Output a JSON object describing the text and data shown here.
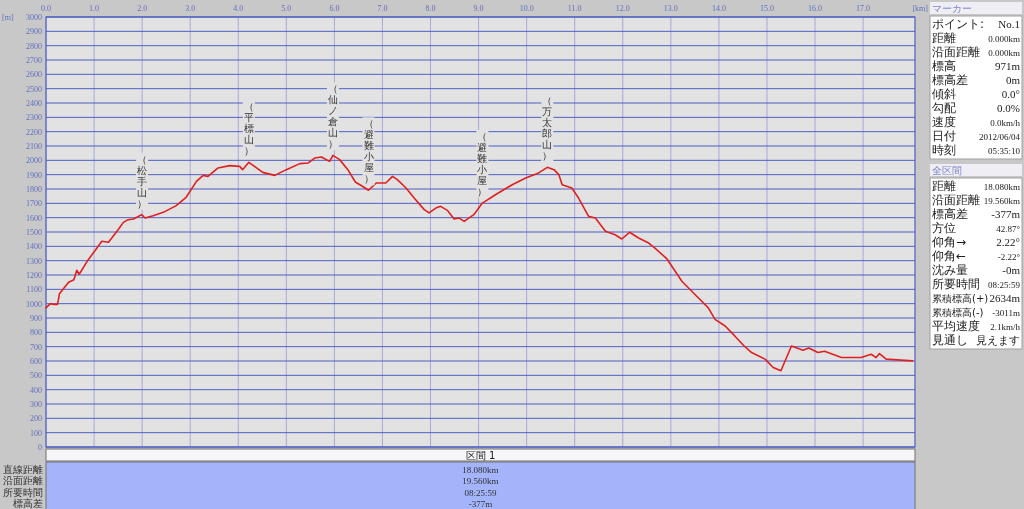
{
  "chart_data": [
    {
      "type": "line",
      "xlabel": "[km]",
      "ylabel": "[m]",
      "xlim": [
        0,
        18.08
      ],
      "ylim": [
        0,
        3000
      ],
      "xticks": [
        {
          "value": 0,
          "label": "0.0"
        },
        {
          "value": 1,
          "label": "1.0"
        },
        {
          "value": 2,
          "label": "2.0"
        },
        {
          "value": 3,
          "label": "3.0"
        },
        {
          "value": 4,
          "label": "4.0"
        },
        {
          "value": 5,
          "label": "5.0"
        },
        {
          "value": 6,
          "label": "6.0"
        },
        {
          "value": 7,
          "label": "7.0"
        },
        {
          "value": 8,
          "label": "8.0"
        },
        {
          "value": 9,
          "label": "9.0"
        },
        {
          "value": 10,
          "label": "10.0"
        },
        {
          "value": 11,
          "label": "11.0"
        },
        {
          "value": 12,
          "label": "12.0"
        },
        {
          "value": 13,
          "label": "13.0"
        },
        {
          "value": 14,
          "label": "14.0"
        },
        {
          "value": 15,
          "label": "15.0"
        },
        {
          "value": 16,
          "label": "16.0"
        },
        {
          "value": 17,
          "label": "17.0"
        }
      ],
      "yticks": [
        0,
        100,
        200,
        300,
        400,
        500,
        600,
        700,
        800,
        900,
        1000,
        1100,
        1200,
        1300,
        1400,
        1500,
        1600,
        1700,
        1800,
        1900,
        2000,
        2100,
        2200,
        2300,
        2400,
        2500,
        2600,
        2700,
        2800,
        2900,
        3000
      ],
      "grid": true,
      "marker": "none",
      "line_style": "solid",
      "series": [
        {
          "color": "#e02020",
          "x": [
            0,
            0.09,
            0.17,
            0.24,
            0.28,
            0.47,
            0.58,
            0.64,
            0.69,
            0.88,
            1.06,
            1.16,
            1.3,
            1.5,
            1.61,
            1.71,
            1.82,
            1.99,
            2.06,
            2.23,
            2.44,
            2.71,
            2.92,
            3.13,
            3.27,
            3.37,
            3.58,
            3.82,
            4.03,
            4.09,
            4.22,
            4.51,
            4.76,
            5.0,
            5.28,
            5.45,
            5.59,
            5.73,
            5.9,
            5.97,
            6.11,
            6.28,
            6.44,
            6.55,
            6.71,
            6.87,
            7.07,
            7.21,
            7.31,
            7.49,
            7.66,
            7.87,
            7.97,
            8.11,
            8.21,
            8.35,
            8.49,
            8.59,
            8.7,
            8.9,
            9.08,
            9.35,
            9.7,
            9.98,
            10.25,
            10.43,
            10.57,
            10.67,
            10.74,
            10.94,
            11.08,
            11.29,
            11.43,
            11.64,
            11.84,
            11.98,
            12.14,
            12.33,
            12.54,
            12.67,
            12.92,
            13.23,
            13.57,
            13.78,
            13.92,
            14.13,
            14.33,
            14.51,
            14.68,
            14.96,
            15.13,
            15.29,
            15.51,
            15.75,
            15.87,
            16.06,
            16.2,
            16.55,
            16.96,
            17.17,
            17.27,
            17.34,
            17.48,
            18.03
          ],
          "values": [
            971,
            1000,
            995,
            995,
            1070,
            1150,
            1167,
            1233,
            1205,
            1307,
            1388,
            1435,
            1428,
            1516,
            1567,
            1586,
            1591,
            1621,
            1598,
            1614,
            1637,
            1684,
            1744,
            1853,
            1895,
            1888,
            1947,
            1963,
            1958,
            1935,
            1986,
            1916,
            1895,
            1935,
            1977,
            1981,
            2016,
            2023,
            1993,
            2035,
            2005,
            1935,
            1847,
            1826,
            1791,
            1842,
            1842,
            1888,
            1865,
            1807,
            1737,
            1656,
            1633,
            1667,
            1679,
            1651,
            1591,
            1598,
            1574,
            1621,
            1702,
            1760,
            1830,
            1877,
            1912,
            1951,
            1935,
            1900,
            1830,
            1807,
            1737,
            1609,
            1598,
            1505,
            1481,
            1451,
            1498,
            1458,
            1423,
            1388,
            1312,
            1156,
            1041,
            971,
            890,
            844,
            775,
            710,
            659,
            613,
            555,
            532,
            705,
            675,
            691,
            659,
            668,
            624,
            624,
            647,
            624,
            652,
            613,
            601
          ]
        }
      ],
      "annotations": [
        {
          "text": "（松手山）",
          "x": 2.0,
          "y": 1621
        },
        {
          "text": "（平標山）",
          "x": 4.22,
          "y": 1986
        },
        {
          "text": "（仙ノ倉山）",
          "x": 5.97,
          "y": 2035
        },
        {
          "text": "（避難小屋）",
          "x": 6.71,
          "y": 1791
        },
        {
          "text": "（避難小屋）",
          "x": 9.08,
          "y": 1702
        },
        {
          "text": "（万太郎山）",
          "x": 10.43,
          "y": 1951
        }
      ]
    },
    {
      "type": "other",
      "title": "マーカー",
      "y_categories": [
        "ポイント:",
        "距離",
        "沿面距離",
        "標高",
        "標高差",
        "傾斜",
        "勾配",
        "速度",
        "日付",
        "時刻"
      ],
      "cell_labels": [
        [
          "No.1"
        ],
        [
          "0.000km"
        ],
        [
          "0.000km"
        ],
        [
          "971m"
        ],
        [
          "0m"
        ],
        [
          "0.0°"
        ],
        [
          "0.0%"
        ],
        [
          "0.0km/h"
        ],
        [
          "2012/06/04"
        ],
        [
          "05:35:10"
        ]
      ]
    },
    {
      "type": "other",
      "title": "全区間",
      "y_categories": [
        "距離",
        "沿面距離",
        "標高差",
        "方位",
        "仰角→",
        "仰角←",
        "沈み量",
        "所要時間",
        "累積標高(+)",
        "累積標高(-)",
        "平均速度",
        "見通し"
      ],
      "cell_labels": [
        [
          "18.080km"
        ],
        [
          "19.560km"
        ],
        [
          "-377m"
        ],
        [
          "42.87°"
        ],
        [
          "2.22°"
        ],
        [
          "-2.22°"
        ],
        [
          "-0m"
        ],
        [
          "08:25:59"
        ],
        [
          "2634m"
        ],
        [
          "-3011m"
        ],
        [
          "2.1km/h"
        ],
        [
          "見えます"
        ]
      ]
    },
    {
      "type": "other",
      "categories": [
        "区間 1"
      ],
      "y_categories": [
        "直線距離",
        "沿面距離",
        "所要時間",
        "標高差"
      ],
      "cell_labels": [
        [
          "18.080km"
        ],
        [
          "19.560km"
        ],
        [
          "08:25:59"
        ],
        [
          "-377m"
        ]
      ]
    }
  ]
}
